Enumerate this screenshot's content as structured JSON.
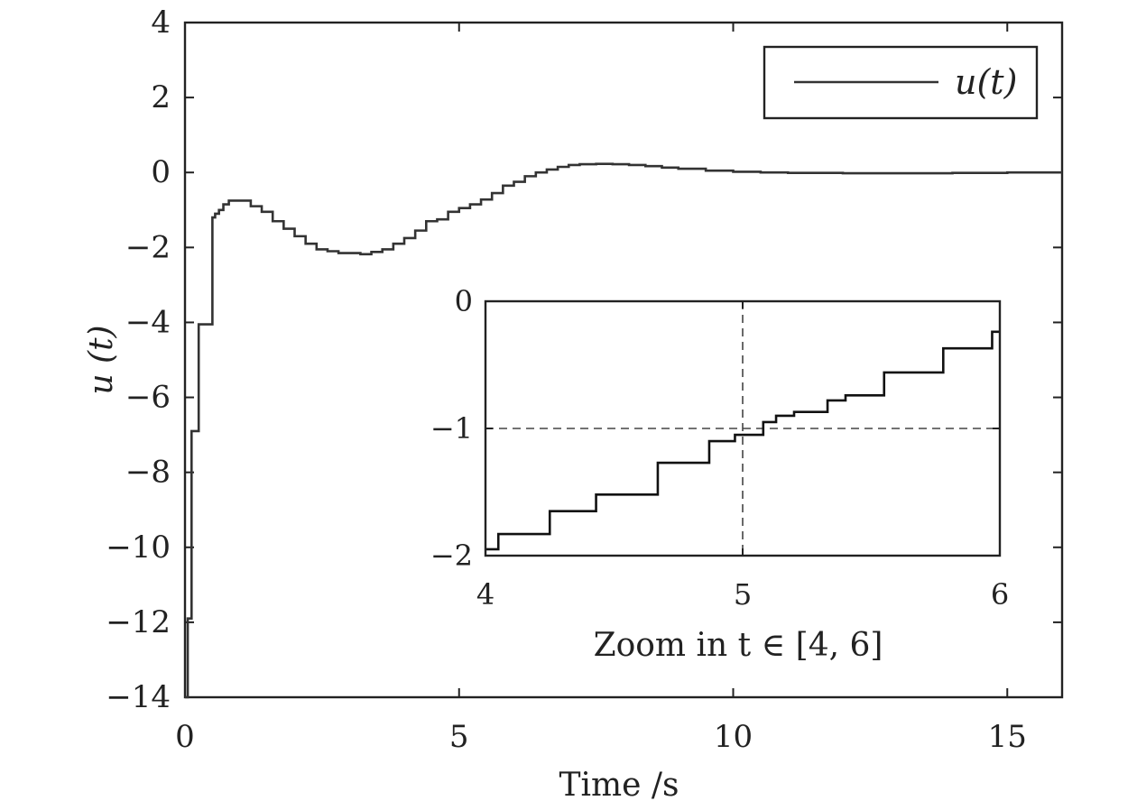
{
  "chart_data": [
    {
      "type": "line",
      "title": "",
      "xlabel": "Time /s",
      "ylabel": "u (t)",
      "xlim": [
        0,
        16
      ],
      "ylim": [
        -14,
        4
      ],
      "xticks": [
        0,
        5,
        10,
        15
      ],
      "xtick_labels": [
        "0",
        "5",
        "10",
        "15"
      ],
      "yticks": [
        4,
        2,
        0,
        -2,
        -4,
        -6,
        -8,
        -10,
        -12,
        -14
      ],
      "ytick_labels": [
        "4",
        "2",
        "0",
        "−2",
        "−4",
        "−6",
        "−8",
        "−10",
        "−12",
        "−14"
      ],
      "grid": false,
      "legend_position": "top-right",
      "series": [
        {
          "name": "u(t)",
          "step": true,
          "x": [
            0,
            0.05,
            0.12,
            0.25,
            0.5,
            0.55,
            0.62,
            0.7,
            0.8,
            1.0,
            1.2,
            1.4,
            1.6,
            1.8,
            2.0,
            2.2,
            2.4,
            2.6,
            2.8,
            3.0,
            3.2,
            3.4,
            3.6,
            3.8,
            4.0,
            4.2,
            4.4,
            4.6,
            4.8,
            5.0,
            5.2,
            5.4,
            5.6,
            5.8,
            6.0,
            6.2,
            6.4,
            6.6,
            6.8,
            7.0,
            7.2,
            7.5,
            7.8,
            8.1,
            8.4,
            8.7,
            9.0,
            9.5,
            10.0,
            10.5,
            11.0,
            12.0,
            13.0,
            14.0,
            15.0,
            16.0
          ],
          "y": [
            -14,
            -11.9,
            -6.9,
            -4.05,
            -1.2,
            -1.1,
            -1.0,
            -0.85,
            -0.75,
            -0.75,
            -0.9,
            -1.05,
            -1.3,
            -1.5,
            -1.7,
            -1.9,
            -2.05,
            -2.1,
            -2.15,
            -2.15,
            -2.18,
            -2.12,
            -2.05,
            -1.9,
            -1.75,
            -1.55,
            -1.3,
            -1.25,
            -1.05,
            -0.95,
            -0.85,
            -0.72,
            -0.55,
            -0.35,
            -0.25,
            -0.1,
            0.0,
            0.08,
            0.15,
            0.2,
            0.22,
            0.23,
            0.22,
            0.2,
            0.17,
            0.13,
            0.1,
            0.05,
            0.02,
            0.0,
            -0.01,
            -0.02,
            -0.02,
            -0.01,
            0.0,
            0.0
          ]
        }
      ]
    },
    {
      "type": "line",
      "title": "",
      "xlabel": "Zoom in t ∈ [4, 6]",
      "ylabel": "",
      "xlim": [
        4,
        6
      ],
      "ylim": [
        -2,
        0
      ],
      "xticks": [
        4,
        5,
        6
      ],
      "xtick_labels": [
        "4",
        "5",
        "6"
      ],
      "yticks": [
        0,
        -1,
        -2
      ],
      "ytick_labels": [
        "0",
        "−1",
        "−2"
      ],
      "grid": false,
      "reference_lines": {
        "x": 5,
        "y": -1
      },
      "series": [
        {
          "step": true,
          "x": [
            4.0,
            4.05,
            4.25,
            4.43,
            4.67,
            4.87,
            4.97,
            5.08,
            5.13,
            5.2,
            5.33,
            5.4,
            5.55,
            5.78,
            5.97,
            6.0
          ],
          "y": [
            -1.95,
            -1.83,
            -1.65,
            -1.52,
            -1.27,
            -1.1,
            -1.05,
            -0.95,
            -0.9,
            -0.87,
            -0.78,
            -0.74,
            -0.56,
            -0.37,
            -0.24,
            -0.24
          ]
        }
      ]
    }
  ],
  "legend": {
    "label": "u(t)"
  }
}
